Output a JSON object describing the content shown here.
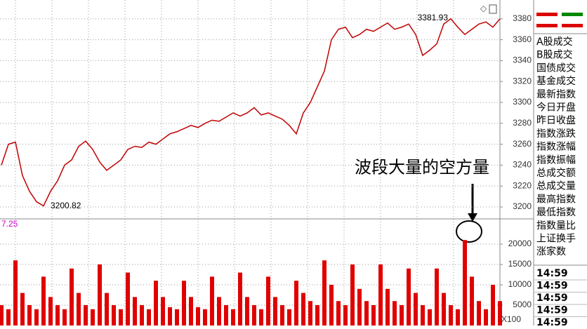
{
  "chart_data": [
    {
      "type": "line",
      "color": "#c00000",
      "values": [
        3240,
        3260,
        3262,
        3230,
        3215,
        3205,
        3201,
        3215,
        3225,
        3240,
        3245,
        3258,
        3263,
        3255,
        3243,
        3235,
        3240,
        3245,
        3255,
        3258,
        3257,
        3262,
        3260,
        3265,
        3270,
        3272,
        3275,
        3278,
        3276,
        3280,
        3283,
        3282,
        3286,
        3290,
        3287,
        3290,
        3295,
        3288,
        3290,
        3287,
        3284,
        3278,
        3270,
        3290,
        3300,
        3315,
        3330,
        3360,
        3370,
        3372,
        3362,
        3365,
        3370,
        3368,
        3372,
        3376,
        3370,
        3372,
        3375,
        3365,
        3345,
        3350,
        3356,
        3375,
        3380,
        3372,
        3365,
        3370,
        3375,
        3377,
        3372,
        3380
      ],
      "ylim": [
        3188.6,
        3398
      ],
      "yticks": [
        3200,
        3220,
        3240,
        3260,
        3280,
        3300,
        3320,
        3340,
        3360,
        3380
      ],
      "grid": true,
      "high": 3381.93,
      "low": 3200.82
    },
    {
      "type": "bar",
      "color": "#e00000",
      "indicator_label": "7.25",
      "unit_label": "X100",
      "annotation": "波段大量的空方量",
      "values": [
        5000,
        4000,
        16000,
        8000,
        5000,
        4000,
        12000,
        7000,
        5000,
        4000,
        14000,
        8000,
        5000,
        4000,
        15000,
        8000,
        5000,
        4000,
        13000,
        7000,
        5000,
        4000,
        11000,
        7000,
        4500,
        4000,
        11000,
        7000,
        4500,
        4000,
        12000,
        7000,
        5000,
        4000,
        13000,
        7000,
        5000,
        4000,
        12000,
        7000,
        5000,
        4000,
        11000,
        8000,
        6000,
        5000,
        16000,
        10000,
        6000,
        5000,
        15000,
        9000,
        6000,
        5000,
        15000,
        9000,
        6000,
        5000,
        14000,
        8000,
        5000,
        4000,
        14000,
        8000,
        5000,
        4000,
        21000,
        12000,
        6000,
        4000,
        10000,
        6000
      ],
      "ylim": [
        0,
        26200
      ],
      "yticks": [
        5000,
        10000,
        15000,
        20000
      ],
      "grid": true
    }
  ],
  "sidebar": {
    "labels": [
      "A股成交",
      "B股成交",
      "国债成交",
      "基金成交",
      "最新指数",
      "今日开盘",
      "昨日收盘",
      "指数涨跌",
      "指数涨幅",
      "指数振幅",
      "总成交额",
      "总成交量",
      "最高指数",
      "最低指数",
      "指数量比",
      "上证换手",
      "涨家数"
    ],
    "times": [
      "14:59",
      "14:59",
      "14:59",
      "14:59",
      "14:59"
    ]
  }
}
